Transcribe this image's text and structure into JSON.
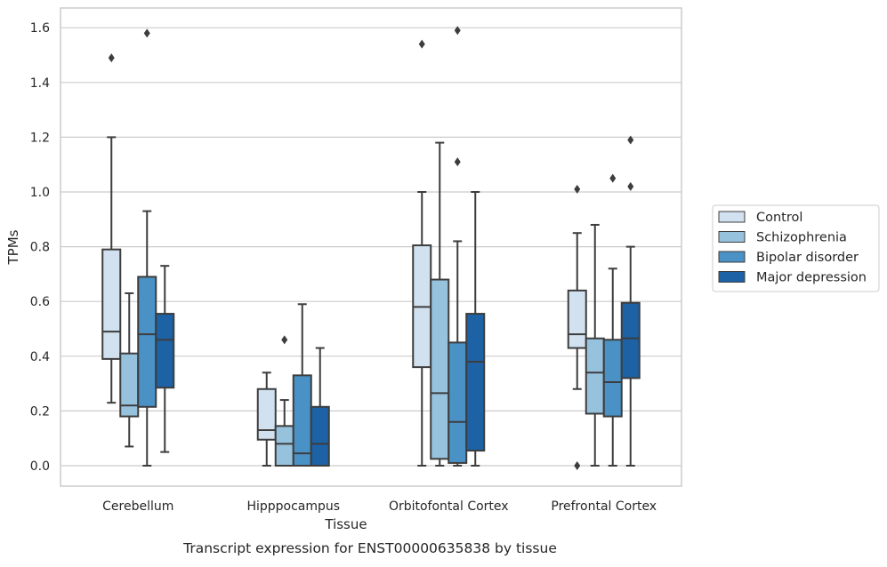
{
  "chart_data": {
    "type": "box",
    "xlabel": "Tissue",
    "ylabel": "TPMs",
    "caption": "Transcript expression for ENST00000635838 by tissue",
    "ylim": [
      -0.08,
      1.67
    ],
    "yticks": [
      "0.0",
      "0.2",
      "0.4",
      "0.6",
      "0.8",
      "1.0",
      "1.2",
      "1.4",
      "1.6"
    ],
    "grid": "horizontal",
    "legend_position": "right",
    "categories": [
      "Cerebellum",
      "Hipppocampus",
      "Orbitofontal Cortex",
      "Prefrontal Cortex"
    ],
    "series": [
      {
        "name": "Control",
        "color": "#d1e1f0",
        "boxes": [
          {
            "whisker_low": 0.23,
            "q1": 0.39,
            "median": 0.49,
            "q3": 0.79,
            "whisker_high": 1.2,
            "outliers": [
              1.49
            ]
          },
          {
            "whisker_low": 0.0,
            "q1": 0.095,
            "median": 0.13,
            "q3": 0.28,
            "whisker_high": 0.34,
            "outliers": []
          },
          {
            "whisker_low": 0.0,
            "q1": 0.36,
            "median": 0.58,
            "q3": 0.805,
            "whisker_high": 1.0,
            "outliers": [
              1.54
            ]
          },
          {
            "whisker_low": 0.28,
            "q1": 0.43,
            "median": 0.48,
            "q3": 0.64,
            "whisker_high": 0.85,
            "outliers": [
              1.01,
              0.0
            ]
          }
        ]
      },
      {
        "name": "Schizophrenia",
        "color": "#97c2de",
        "boxes": [
          {
            "whisker_low": 0.07,
            "q1": 0.18,
            "median": 0.22,
            "q3": 0.41,
            "whisker_high": 0.63,
            "outliers": []
          },
          {
            "whisker_low": 0.0,
            "q1": 0.0,
            "median": 0.08,
            "q3": 0.145,
            "whisker_high": 0.24,
            "outliers": [
              0.46
            ]
          },
          {
            "whisker_low": 0.0,
            "q1": 0.025,
            "median": 0.265,
            "q3": 0.68,
            "whisker_high": 1.18,
            "outliers": []
          },
          {
            "whisker_low": 0.0,
            "q1": 0.19,
            "median": 0.34,
            "q3": 0.465,
            "whisker_high": 0.88,
            "outliers": []
          }
        ]
      },
      {
        "name": "Bipolar disorder",
        "color": "#4a92c6",
        "boxes": [
          {
            "whisker_low": 0.0,
            "q1": 0.215,
            "median": 0.48,
            "q3": 0.69,
            "whisker_high": 0.93,
            "outliers": [
              1.58
            ]
          },
          {
            "whisker_low": 0.0,
            "q1": 0.0,
            "median": 0.045,
            "q3": 0.33,
            "whisker_high": 0.59,
            "outliers": []
          },
          {
            "whisker_low": 0.0,
            "q1": 0.01,
            "median": 0.16,
            "q3": 0.45,
            "whisker_high": 0.82,
            "outliers": [
              1.11,
              1.59
            ]
          },
          {
            "whisker_low": 0.0,
            "q1": 0.18,
            "median": 0.305,
            "q3": 0.46,
            "whisker_high": 0.72,
            "outliers": [
              1.05
            ]
          }
        ]
      },
      {
        "name": "Major depression",
        "color": "#1c62a5",
        "boxes": [
          {
            "whisker_low": 0.05,
            "q1": 0.285,
            "median": 0.46,
            "q3": 0.555,
            "whisker_high": 0.73,
            "outliers": []
          },
          {
            "whisker_low": 0.0,
            "q1": 0.0,
            "median": 0.08,
            "q3": 0.215,
            "whisker_high": 0.43,
            "outliers": []
          },
          {
            "whisker_low": 0.0,
            "q1": 0.055,
            "median": 0.38,
            "q3": 0.555,
            "whisker_high": 1.0,
            "outliers": []
          },
          {
            "whisker_low": 0.0,
            "q1": 0.32,
            "median": 0.465,
            "q3": 0.595,
            "whisker_high": 0.8,
            "outliers": [
              1.02,
              1.19
            ]
          }
        ]
      }
    ]
  }
}
